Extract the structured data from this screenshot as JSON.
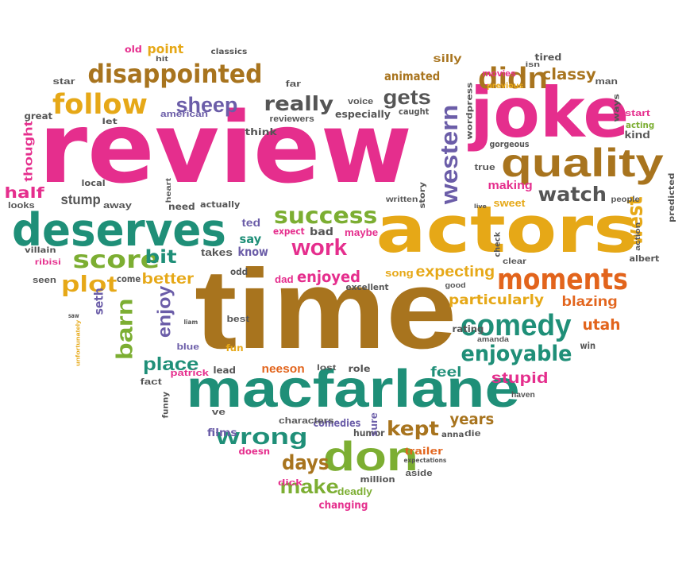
{
  "palette": {
    "pink": "#e52e8d",
    "gold": "#e6a817",
    "brown": "#a8741e",
    "teal": "#1f8f78",
    "green": "#7cae32",
    "orange": "#e2641c",
    "purple": "#6b5da8",
    "gray": "#555555"
  },
  "words": [
    {
      "text": "review",
      "color": "pink"
    },
    {
      "text": "time",
      "color": "brown"
    },
    {
      "text": "actors",
      "color": "gold"
    },
    {
      "text": "macfarlane",
      "color": "teal"
    },
    {
      "text": "joke",
      "color": "pink"
    },
    {
      "text": "quality",
      "color": "brown"
    },
    {
      "text": "deserves",
      "color": "teal"
    },
    {
      "text": "don",
      "color": "green"
    },
    {
      "text": "disappointed",
      "color": "brown"
    },
    {
      "text": "western",
      "color": "purple"
    },
    {
      "text": "follow",
      "color": "gold"
    },
    {
      "text": "comedy",
      "color": "teal"
    },
    {
      "text": "moments",
      "color": "orange"
    },
    {
      "text": "didn",
      "color": "brown"
    },
    {
      "text": "success",
      "color": "green"
    },
    {
      "text": "work",
      "color": "pink"
    },
    {
      "text": "score",
      "color": "green"
    },
    {
      "text": "barn",
      "color": "green"
    },
    {
      "text": "enjoyable",
      "color": "teal"
    },
    {
      "text": "wrong",
      "color": "teal"
    },
    {
      "text": "days",
      "color": "brown"
    },
    {
      "text": "plot",
      "color": "gold"
    },
    {
      "text": "west",
      "color": "gold"
    },
    {
      "text": "gets",
      "color": "gray"
    },
    {
      "text": "really",
      "color": "gray"
    },
    {
      "text": "sheep",
      "color": "purple"
    },
    {
      "text": "kept",
      "color": "brown"
    },
    {
      "text": "make",
      "color": "green"
    },
    {
      "text": "enjoyed",
      "color": "pink"
    },
    {
      "text": "enjoy",
      "color": "purple"
    },
    {
      "text": "watch",
      "color": "gray"
    },
    {
      "text": "place",
      "color": "teal"
    },
    {
      "text": "classy",
      "color": "brown"
    },
    {
      "text": "better",
      "color": "gold"
    },
    {
      "text": "bit",
      "color": "teal"
    },
    {
      "text": "blazing",
      "color": "orange"
    },
    {
      "text": "particularly",
      "color": "gold"
    },
    {
      "text": "expecting",
      "color": "gold"
    },
    {
      "text": "utah",
      "color": "orange"
    },
    {
      "text": "stupid",
      "color": "pink"
    },
    {
      "text": "years",
      "color": "brown"
    },
    {
      "text": "feel",
      "color": "teal"
    },
    {
      "text": "half",
      "color": "pink"
    },
    {
      "text": "stump",
      "color": "gray"
    },
    {
      "text": "point",
      "color": "gold"
    },
    {
      "text": "silly",
      "color": "brown"
    },
    {
      "text": "animated",
      "color": "brown"
    },
    {
      "text": "making",
      "color": "pink"
    },
    {
      "text": "comedies",
      "color": "purple"
    },
    {
      "text": "trailer",
      "color": "orange"
    },
    {
      "text": "changing",
      "color": "pink"
    },
    {
      "text": "deadly",
      "color": "green"
    },
    {
      "text": "seth",
      "color": "purple"
    },
    {
      "text": "neeson",
      "color": "orange"
    },
    {
      "text": "say",
      "color": "teal"
    },
    {
      "text": "ted",
      "color": "purple"
    },
    {
      "text": "know",
      "color": "purple"
    },
    {
      "text": "takes",
      "color": "gray"
    },
    {
      "text": "bad",
      "color": "gray"
    },
    {
      "text": "maybe",
      "color": "pink"
    },
    {
      "text": "expect",
      "color": "pink"
    },
    {
      "text": "song",
      "color": "gold"
    },
    {
      "text": "excellent",
      "color": "gray"
    },
    {
      "text": "dad",
      "color": "pink"
    },
    {
      "text": "odd",
      "color": "gray"
    },
    {
      "text": "best",
      "color": "gray"
    },
    {
      "text": "fun",
      "color": "gold"
    },
    {
      "text": "blue",
      "color": "purple"
    },
    {
      "text": "liam",
      "color": "gray"
    },
    {
      "text": "patrick",
      "color": "pink"
    },
    {
      "text": "lead",
      "color": "gray"
    },
    {
      "text": "lost",
      "color": "gray"
    },
    {
      "text": "role",
      "color": "gray"
    },
    {
      "text": "characters",
      "color": "gray"
    },
    {
      "text": "humor",
      "color": "gray"
    },
    {
      "text": "sure",
      "color": "purple"
    },
    {
      "text": "anna",
      "color": "gray"
    },
    {
      "text": "die",
      "color": "gray"
    },
    {
      "text": "films",
      "color": "purple"
    },
    {
      "text": "ve",
      "color": "gray"
    },
    {
      "text": "doesn",
      "color": "pink"
    },
    {
      "text": "dick",
      "color": "pink"
    },
    {
      "text": "million",
      "color": "gray"
    },
    {
      "text": "aside",
      "color": "gray"
    },
    {
      "text": "expectations",
      "color": "gray"
    },
    {
      "text": "fact",
      "color": "gray"
    },
    {
      "text": "funny",
      "color": "gray"
    },
    {
      "text": "unfortunately",
      "color": "gold"
    },
    {
      "text": "saw",
      "color": "gray"
    },
    {
      "text": "seen",
      "color": "gray"
    },
    {
      "text": "come",
      "color": "gray"
    },
    {
      "text": "ribisi",
      "color": "pink"
    },
    {
      "text": "villain",
      "color": "gray"
    },
    {
      "text": "looks",
      "color": "gray"
    },
    {
      "text": "local",
      "color": "gray"
    },
    {
      "text": "away",
      "color": "gray"
    },
    {
      "text": "need",
      "color": "gray"
    },
    {
      "text": "heart",
      "color": "gray"
    },
    {
      "text": "actually",
      "color": "gray"
    },
    {
      "text": "thought",
      "color": "pink"
    },
    {
      "text": "great",
      "color": "gray"
    },
    {
      "text": "star",
      "color": "gray"
    },
    {
      "text": "let",
      "color": "gray"
    },
    {
      "text": "american",
      "color": "purple"
    },
    {
      "text": "think",
      "color": "gray"
    },
    {
      "text": "reviewers",
      "color": "gray"
    },
    {
      "text": "especially",
      "color": "gray"
    },
    {
      "text": "voice",
      "color": "gray"
    },
    {
      "text": "caught",
      "color": "gray"
    },
    {
      "text": "far",
      "color": "gray"
    },
    {
      "text": "old",
      "color": "pink"
    },
    {
      "text": "hit",
      "color": "gray"
    },
    {
      "text": "classics",
      "color": "gray"
    },
    {
      "text": "movies",
      "color": "pink"
    },
    {
      "text": "tired",
      "color": "gray"
    },
    {
      "text": "isn",
      "color": "gray"
    },
    {
      "text": "previous",
      "color": "gold"
    },
    {
      "text": "man",
      "color": "gray"
    },
    {
      "text": "ways",
      "color": "gray"
    },
    {
      "text": "start",
      "color": "pink"
    },
    {
      "text": "acting",
      "color": "green"
    },
    {
      "text": "kind",
      "color": "gray"
    },
    {
      "text": "gorgeous",
      "color": "gray"
    },
    {
      "text": "true",
      "color": "gray"
    },
    {
      "text": "wordpress",
      "color": "gray"
    },
    {
      "text": "written",
      "color": "gray"
    },
    {
      "text": "story",
      "color": "gray"
    },
    {
      "text": "sweet",
      "color": "gold"
    },
    {
      "text": "live",
      "color": "gray"
    },
    {
      "text": "people",
      "color": "gray"
    },
    {
      "text": "predicted",
      "color": "gray"
    },
    {
      "text": "action",
      "color": "gray"
    },
    {
      "text": "check",
      "color": "gray"
    },
    {
      "text": "clear",
      "color": "gray"
    },
    {
      "text": "albert",
      "color": "gray"
    },
    {
      "text": "good",
      "color": "gray"
    },
    {
      "text": "rating",
      "color": "gray"
    },
    {
      "text": "amanda",
      "color": "gray"
    },
    {
      "text": "win",
      "color": "gray"
    },
    {
      "text": "haven",
      "color": "gray"
    }
  ]
}
